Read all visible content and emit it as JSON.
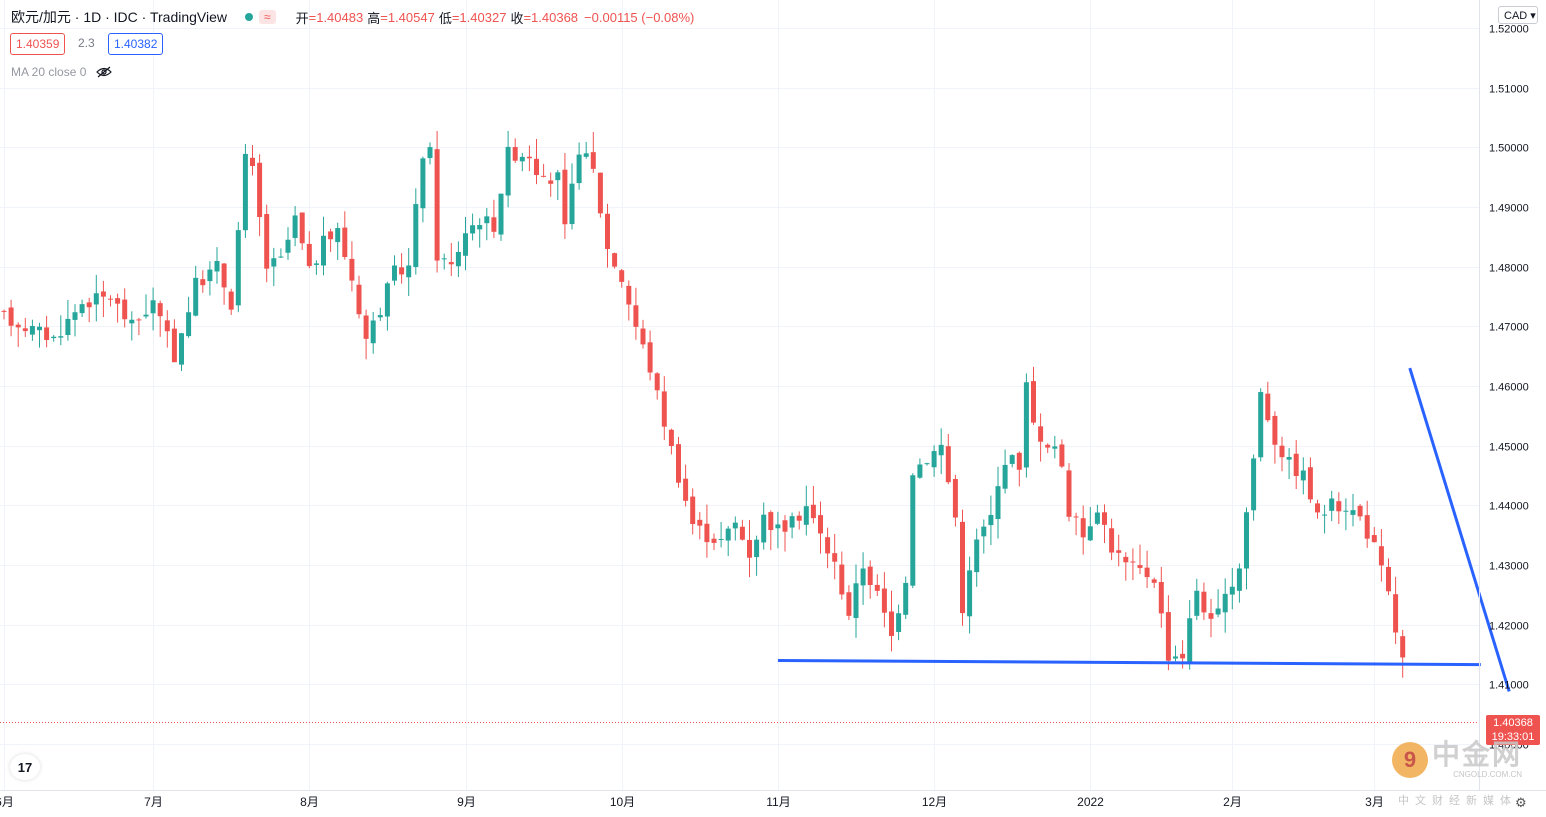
{
  "header": {
    "symbol": "欧元/加元 · 1D · IDC · TradingView",
    "wave_icon": "≈",
    "open_label": "开",
    "open": "=1.40483",
    "high_label": "高",
    "high": "=1.40547",
    "low_label": "低",
    "low": "=1.40327",
    "close_label": "收",
    "close": "=1.40368",
    "change": "−0.00115 (−0.08%)"
  },
  "bid": "1.40359",
  "spread": "2.3",
  "ask": "1.40382",
  "indicator": {
    "label": "MA 20 close 0",
    "icon": "eye-crossed-icon"
  },
  "currency": "CAD",
  "last_price": {
    "value": "1.40368",
    "countdown": "19:33:01"
  },
  "logo_text": "17",
  "watermark": {
    "circle": "9",
    "big": "中金网",
    "url": "CNGOLD.COM.CN",
    "sub": "中文财经新媒体"
  },
  "colors": {
    "up": "#26a69a",
    "down": "#ef5350",
    "trendline": "#2962ff",
    "grid": "#f0f3fa"
  },
  "chart_data": {
    "type": "candlestick",
    "y_ticks": [
      "1.52000",
      "1.51000",
      "1.50000",
      "1.49000",
      "1.48000",
      "1.47000",
      "1.46000",
      "1.45000",
      "1.44000",
      "1.43000",
      "1.42000",
      "1.41000",
      "1.40000"
    ],
    "y_tick_values": [
      1.52,
      1.51,
      1.5,
      1.49,
      1.48,
      1.47,
      1.46,
      1.45,
      1.44,
      1.43,
      1.42,
      1.41,
      1.4
    ],
    "ylim": [
      1.3955,
      1.5215
    ],
    "x_labels": [
      "6月",
      "7月",
      "8月",
      "9月",
      "10月",
      "11月",
      "12月",
      "2022",
      "2月",
      "3月"
    ],
    "x_label_index": [
      0,
      21,
      43,
      65,
      87,
      109,
      131,
      153,
      173,
      193
    ],
    "candle_count": 198,
    "horizontal_line": [
      [
        109,
        1.414
      ],
      [
        208,
        1.4133
      ]
    ],
    "descending_line": [
      [
        198,
        1.463
      ],
      [
        212,
        1.4088
      ]
    ],
    "last_close": 1.40368
  }
}
